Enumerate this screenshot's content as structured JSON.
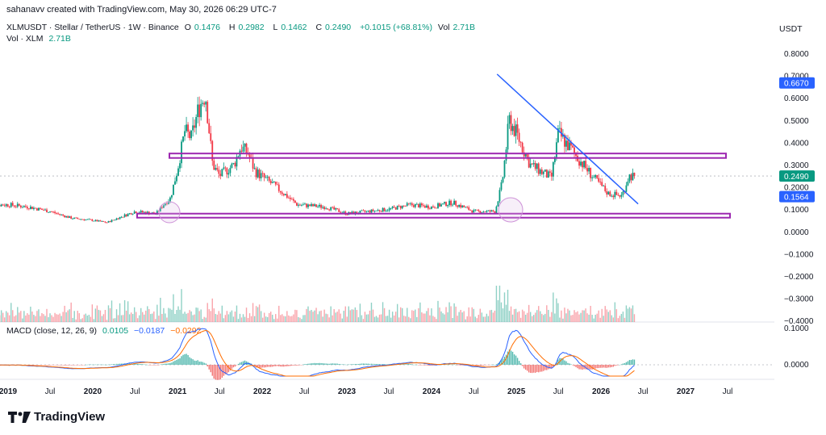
{
  "header": {
    "attribution": "sahanavv created with TradingView.com, May 30, 2026 06:29 UTC-7",
    "symbol_line": "XLMUSDT · Stellar / TetherUS · 1W · Binance",
    "o_label": "O",
    "o_value": "0.1476",
    "h_label": "H",
    "h_value": "0.2982",
    "l_label": "L",
    "l_value": "0.1462",
    "c_label": "C",
    "c_value": "0.2490",
    "change": "+0.1015 (+68.81%)",
    "vol_label": "Vol",
    "vol_value": "2.71B",
    "vol_line_label": "Vol · XLM",
    "vol_line_value": "2.71B",
    "currency": "USDT"
  },
  "macd_legend": {
    "label": "MACD (close, 12, 26, 9)",
    "v1": "0.0105",
    "v2": "−0.0187",
    "v3": "−0.0292"
  },
  "colors": {
    "up": "#089981",
    "down": "#f23645",
    "macd": "#2962ff",
    "signal": "#ff6d00",
    "zone": "#9c27b0",
    "trend": "#2962ff"
  },
  "footer": {
    "brand": "TradingView"
  },
  "chart_data": {
    "type": "line",
    "title": "XLMUSDT · Stellar / TetherUS · 1W · Binance",
    "x_tick_labels": [
      "2019",
      "Jul",
      "2020",
      "Jul",
      "2021",
      "Jul",
      "2022",
      "Jul",
      "2023",
      "Jul",
      "2024",
      "Jul",
      "2025",
      "Jul",
      "2026",
      "Jul",
      "2027",
      "Jul"
    ],
    "price_axis_ticks": [
      "0.8000",
      "0.7000",
      "0.6000",
      "0.5000",
      "0.4000",
      "0.3000",
      "0.2000",
      "0.1000",
      "0.0000",
      "−0.1000",
      "−0.2000",
      "−0.3000",
      "−0.4000"
    ],
    "price_labels": [
      {
        "text": "0.6670",
        "value": 0.667
      },
      {
        "text": "0.2490",
        "value": 0.249
      },
      {
        "text": "0.1564",
        "value": 0.1564
      }
    ],
    "macd_axis_ticks": [
      "0.1000",
      "0.0000"
    ],
    "ylim": [
      -0.4,
      0.8
    ],
    "series": [
      {
        "name": "XLMUSDT close (weekly, approx.)",
        "x": [
          "2018-10",
          "2019-01",
          "2019-04",
          "2019-07",
          "2019-10",
          "2020-01",
          "2020-03",
          "2020-07",
          "2020-10",
          "2020-11",
          "2020-12",
          "2021-01",
          "2021-02",
          "2021-03",
          "2021-04",
          "2021-05",
          "2021-06",
          "2021-07",
          "2021-09",
          "2021-10",
          "2021-11",
          "2021-12",
          "2022-03",
          "2022-06",
          "2022-10",
          "2023-01",
          "2023-07",
          "2023-10",
          "2024-01",
          "2024-04",
          "2024-07",
          "2024-10",
          "2024-11",
          "2024-12",
          "2025-01",
          "2025-03",
          "2025-06",
          "2025-07",
          "2025-08",
          "2025-10",
          "2025-12",
          "2026-02",
          "2026-04",
          "2026-05"
        ],
        "values": [
          0.12,
          0.12,
          0.11,
          0.09,
          0.06,
          0.05,
          0.04,
          0.09,
          0.08,
          0.12,
          0.15,
          0.28,
          0.45,
          0.42,
          0.55,
          0.62,
          0.3,
          0.25,
          0.3,
          0.38,
          0.35,
          0.27,
          0.2,
          0.12,
          0.11,
          0.08,
          0.1,
          0.12,
          0.11,
          0.13,
          0.09,
          0.09,
          0.22,
          0.5,
          0.44,
          0.3,
          0.24,
          0.44,
          0.4,
          0.32,
          0.24,
          0.17,
          0.16,
          0.249
        ]
      }
    ],
    "annotations": [
      {
        "type": "horizontal-zone",
        "from": 0.33,
        "to": 0.35
      },
      {
        "type": "horizontal-zone",
        "from": 0.07,
        "to": 0.08
      },
      {
        "type": "trendline",
        "points": [
          [
            "2024-12",
            0.67
          ],
          [
            "2026-12",
            0.16
          ]
        ]
      }
    ]
  }
}
